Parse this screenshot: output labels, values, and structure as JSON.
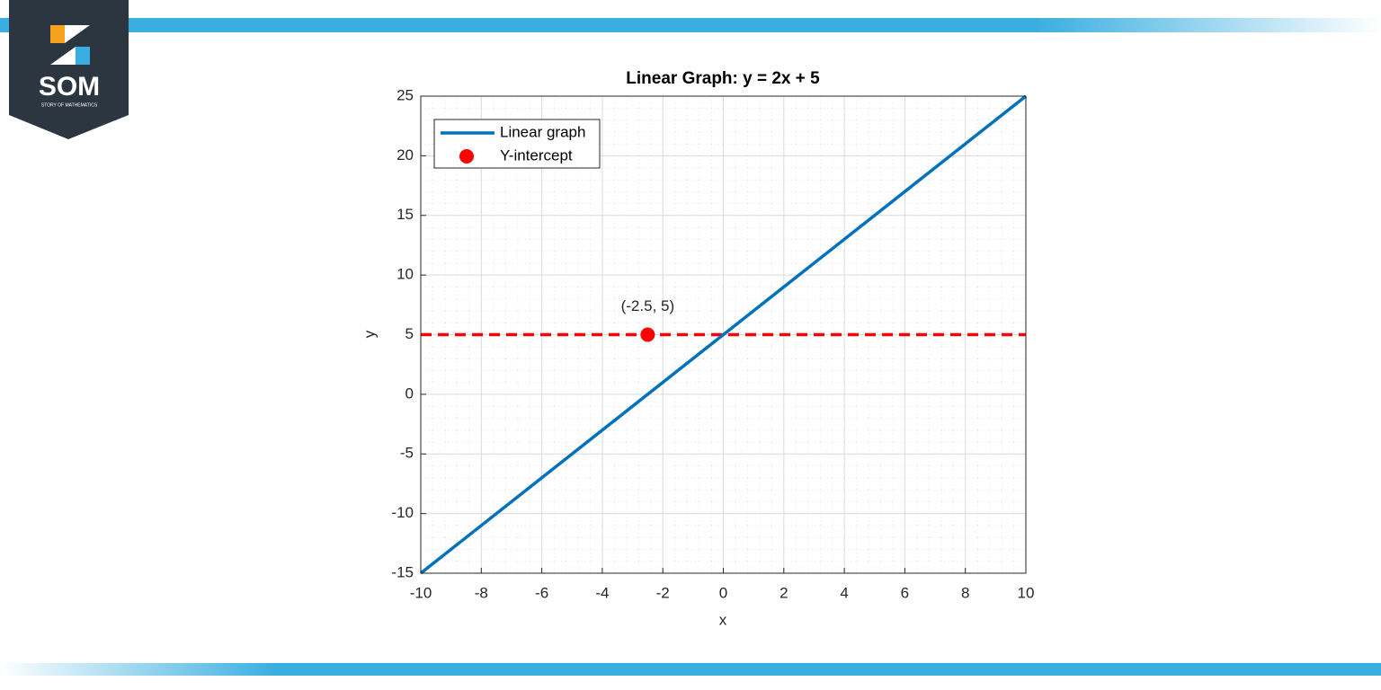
{
  "logo": {
    "text": "SOM",
    "subtitle": "STORY OF MATHEMATICS"
  },
  "chart_data": {
    "type": "line",
    "title": "Linear Graph: y = 2x + 5",
    "xlabel": "x",
    "ylabel": "y",
    "series": [
      {
        "name": "Linear graph",
        "type": "line",
        "color": "#0072bd",
        "x": [
          -10,
          10
        ],
        "values": [
          -15,
          25
        ]
      },
      {
        "name": "Y-intercept",
        "type": "scatter",
        "color": "#ff0000",
        "x": [
          -2.5
        ],
        "values": [
          5
        ]
      }
    ],
    "hlines": [
      {
        "value": 5,
        "color": "#ff0000",
        "style": "dashed"
      }
    ],
    "annotations": [
      {
        "text": "(-2.5, 5)",
        "x": -2.5,
        "y": 5
      }
    ],
    "xlim": [
      -10,
      10
    ],
    "xticks": [
      -10,
      -8,
      -6,
      -4,
      -2,
      0,
      2,
      4,
      6,
      8,
      10
    ],
    "ylim": [
      -15,
      25
    ],
    "yticks": [
      -15,
      -10,
      -5,
      0,
      5,
      10,
      15,
      20,
      25
    ],
    "grid": true,
    "minor_grid": true,
    "legend": "northwest"
  }
}
